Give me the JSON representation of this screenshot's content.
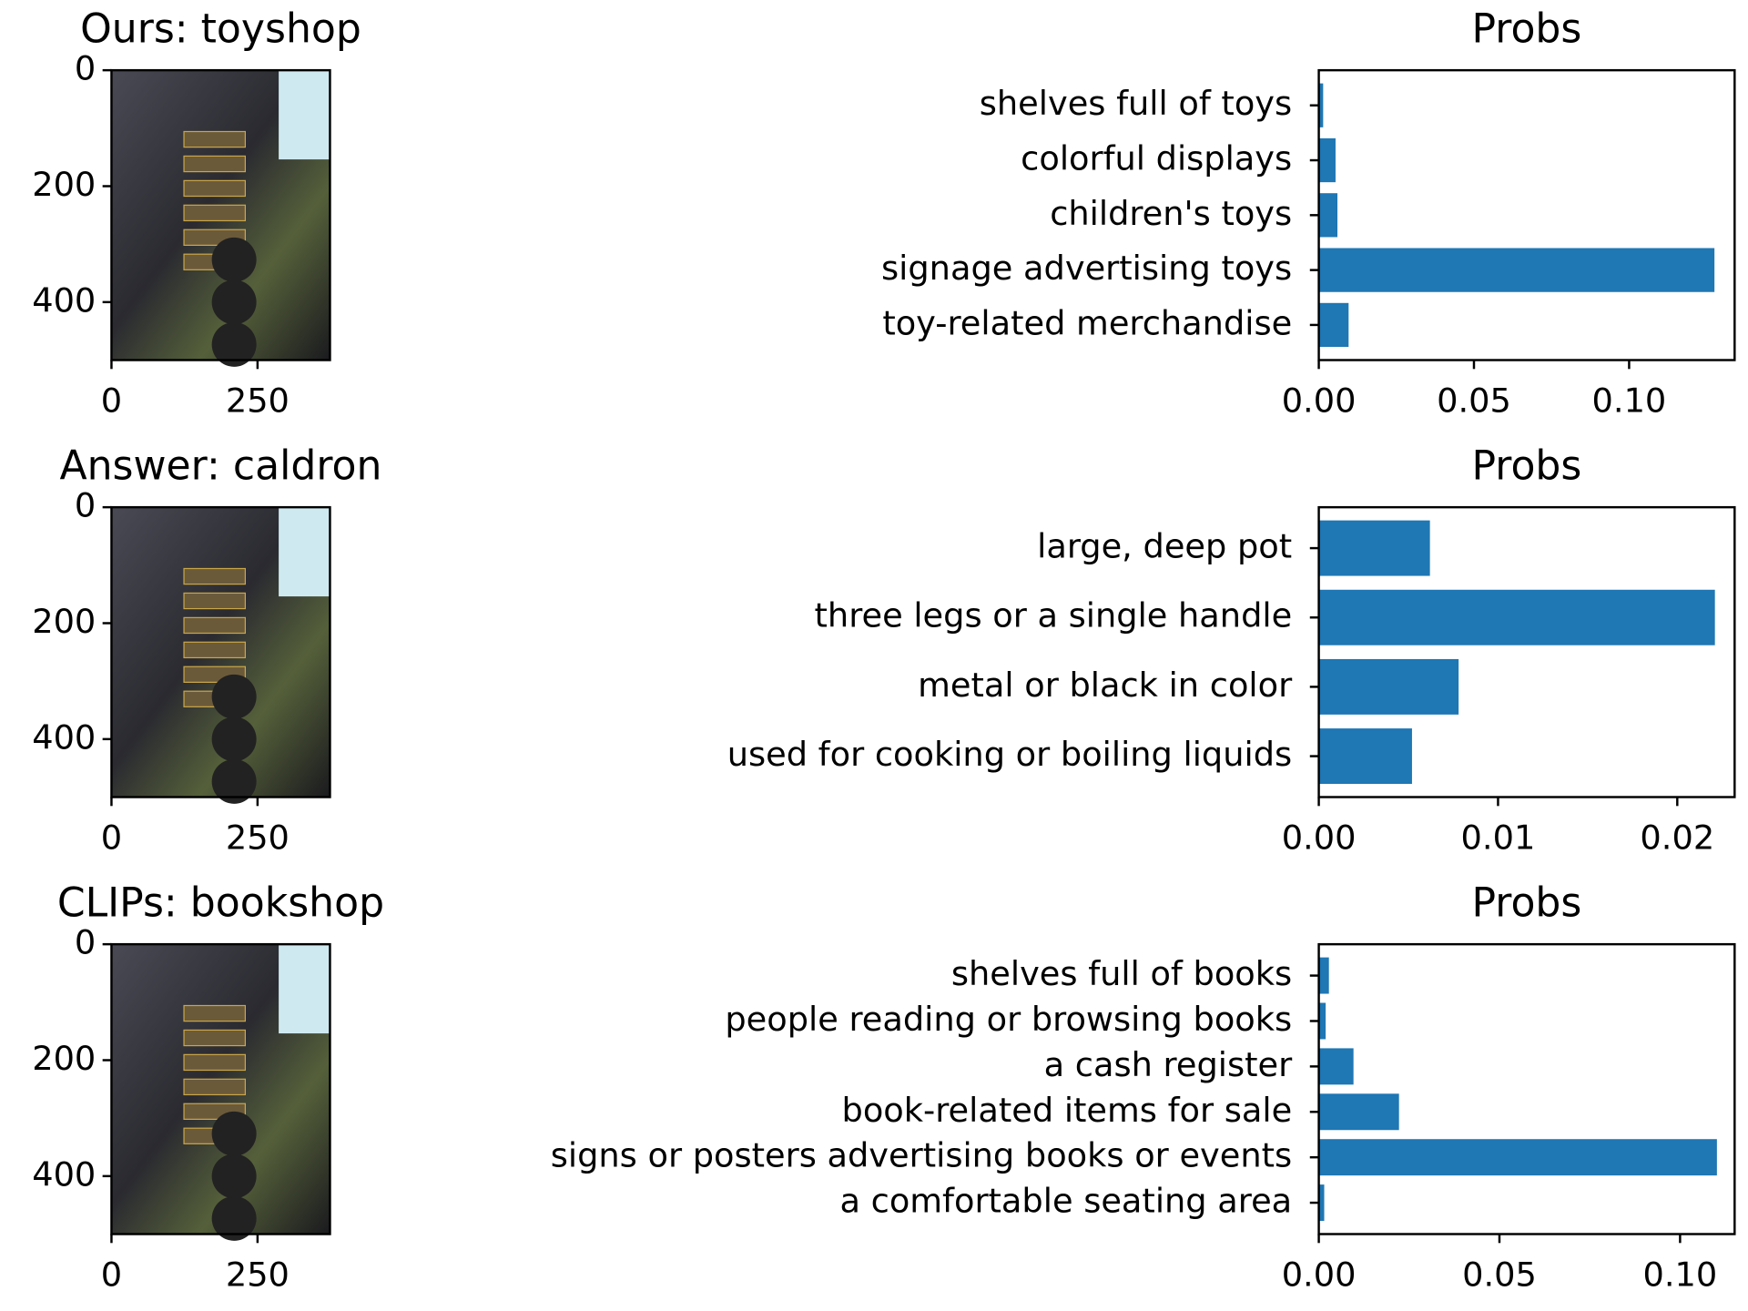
{
  "chart_data": [
    {
      "type": "image",
      "title": "Ours: toyshop",
      "xlim": [
        0,
        374
      ],
      "ylim": [
        500,
        0
      ],
      "xticks": [
        0,
        250
      ],
      "yticks": [
        0,
        200,
        400
      ]
    },
    {
      "type": "barh",
      "title": "Probs",
      "color": "#1f77b4",
      "categories": [
        "shelves full of toys",
        "colorful displays",
        "children's toys",
        "signage advertising toys",
        "toy-related merchandise"
      ],
      "values": [
        0.0014,
        0.0054,
        0.006,
        0.1275,
        0.0096
      ],
      "xlim": [
        0,
        0.134
      ],
      "xticks": [
        {
          "value": 0,
          "label": "0.00"
        },
        {
          "value": 0.05,
          "label": "0.05"
        },
        {
          "value": 0.1,
          "label": "0.10"
        }
      ]
    },
    {
      "type": "image",
      "title": "Answer: caldron",
      "xlim": [
        0,
        374
      ],
      "ylim": [
        500,
        0
      ],
      "xticks": [
        0,
        250
      ],
      "yticks": [
        0,
        200,
        400
      ]
    },
    {
      "type": "barh",
      "title": "Probs",
      "color": "#1f77b4",
      "categories": [
        "large, deep pot",
        "three legs or a single handle",
        "metal or black in color",
        "used for cooking or boiling liquids"
      ],
      "values": [
        0.0062,
        0.0221,
        0.0078,
        0.0052
      ],
      "xlim": [
        0,
        0.0232
      ],
      "xticks": [
        {
          "value": 0,
          "label": "0.00"
        },
        {
          "value": 0.01,
          "label": "0.01"
        },
        {
          "value": 0.02,
          "label": "0.02"
        }
      ]
    },
    {
      "type": "image",
      "title": "CLIPs: bookshop",
      "xlim": [
        0,
        374
      ],
      "ylim": [
        500,
        0
      ],
      "xticks": [
        0,
        250
      ],
      "yticks": [
        0,
        200,
        400
      ]
    },
    {
      "type": "barh",
      "title": "Probs",
      "color": "#1f77b4",
      "categories": [
        "shelves full of books",
        "people reading or browsing books",
        "a cash register",
        "book-related items for sale",
        "signs or posters advertising books or events",
        "a comfortable seating area"
      ],
      "values": [
        0.0028,
        0.0019,
        0.0096,
        0.0222,
        0.1102,
        0.0015
      ],
      "xlim": [
        0,
        0.1151
      ],
      "xticks": [
        {
          "value": 0,
          "label": "0.00"
        },
        {
          "value": 0.05,
          "label": "0.05"
        },
        {
          "value": 0.1,
          "label": "0.10"
        }
      ]
    }
  ]
}
